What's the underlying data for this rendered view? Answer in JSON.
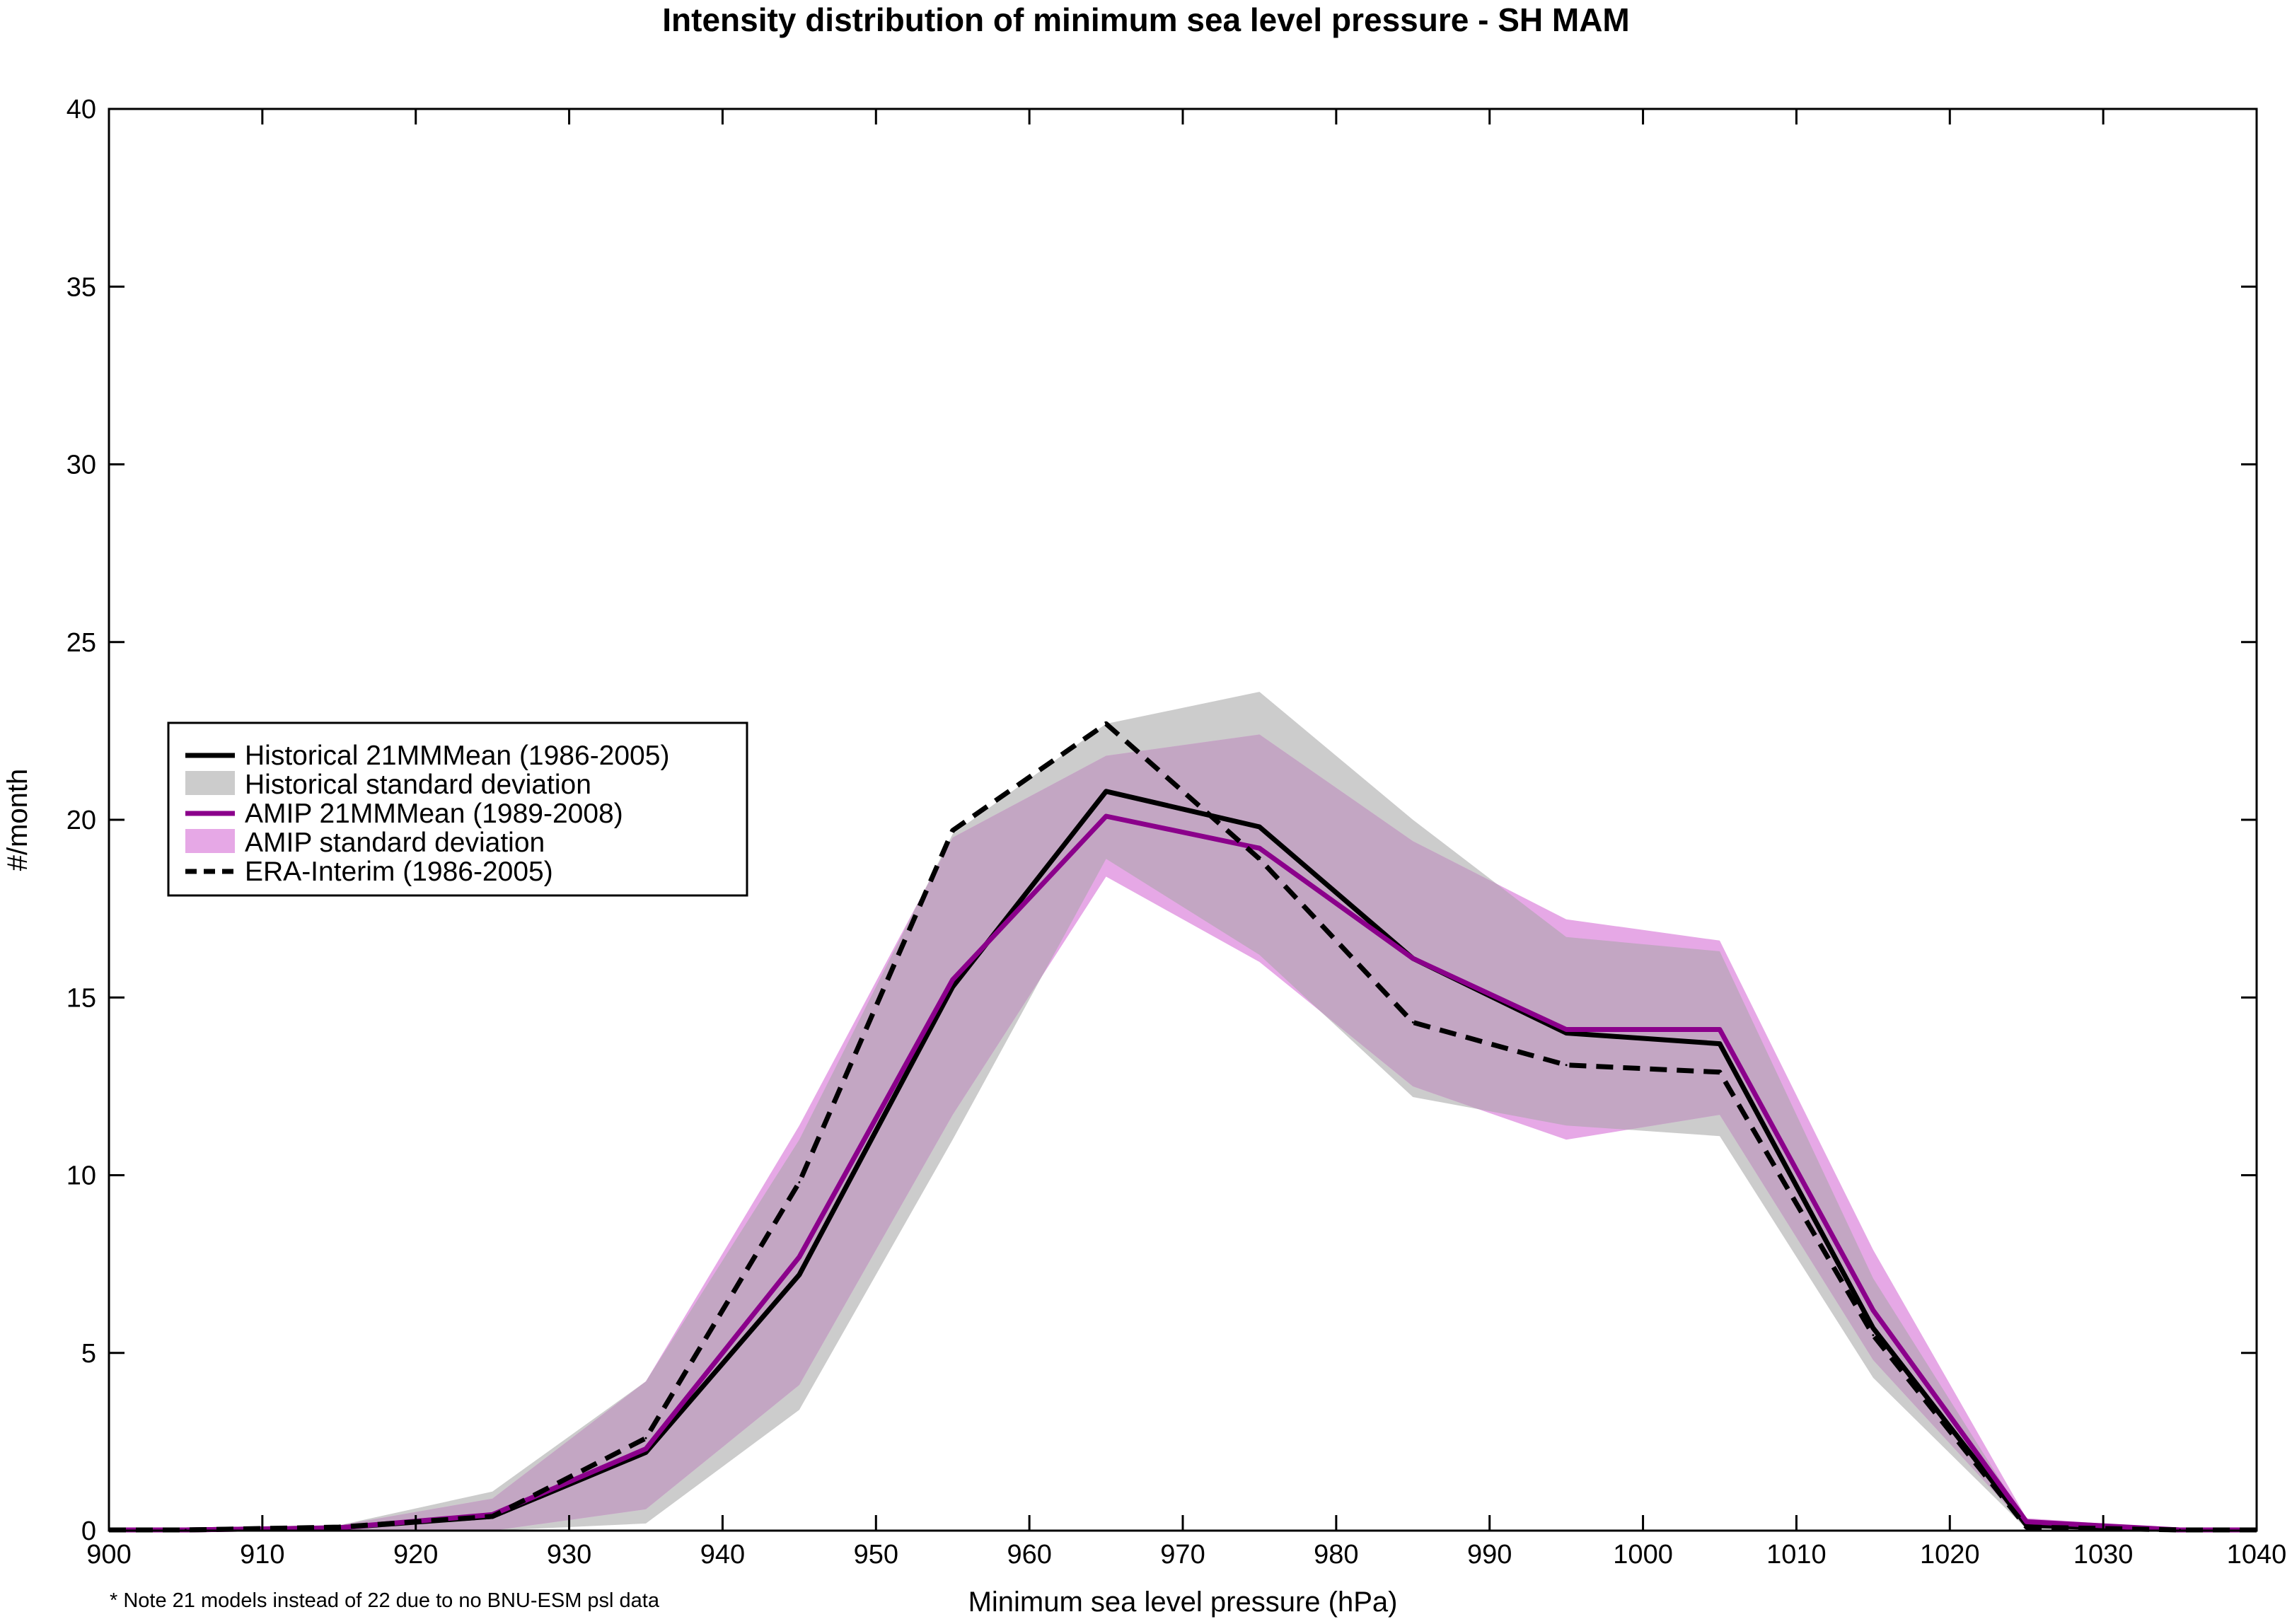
{
  "chart_data": {
    "type": "line",
    "title": "Intensity distribution of minimum sea level pressure - SH MAM",
    "xlabel": "Minimum sea level pressure (hPa)",
    "ylabel": "#/month",
    "xlim": [
      900,
      1040
    ],
    "ylim": [
      0,
      40
    ],
    "xticks": [
      900,
      910,
      920,
      930,
      940,
      950,
      960,
      970,
      980,
      990,
      1000,
      1010,
      1020,
      1030,
      1040
    ],
    "yticks": [
      0,
      5,
      10,
      15,
      20,
      25,
      30,
      35,
      40
    ],
    "grid": false,
    "legend_position": "center-left",
    "x": [
      905,
      915,
      925,
      935,
      945,
      955,
      965,
      975,
      985,
      995,
      1005,
      1015,
      1025,
      1035
    ],
    "x_extended": [
      900,
      905,
      915,
      925,
      935,
      945,
      955,
      965,
      975,
      985,
      995,
      1005,
      1015,
      1025,
      1035,
      1040
    ],
    "series": [
      {
        "name": "Historical 21MMMean (1986-2005)",
        "kind": "line",
        "color": "#000000",
        "dash": "solid",
        "values": [
          0.02,
          0.08,
          0.4,
          2.2,
          7.2,
          15.3,
          20.8,
          19.8,
          16.1,
          14.0,
          13.7,
          5.7,
          0.15,
          0.02
        ]
      },
      {
        "name": "Historical standard deviation",
        "kind": "band",
        "color": "#cccccc",
        "lower": [
          0.0,
          0.0,
          0.0,
          0.2,
          3.4,
          11.0,
          18.9,
          16.2,
          12.2,
          11.4,
          11.1,
          4.3,
          0.05,
          0.0
        ],
        "upper": [
          0.05,
          0.15,
          1.1,
          4.2,
          11.0,
          19.6,
          22.7,
          23.6,
          20.0,
          16.7,
          16.3,
          7.1,
          0.25,
          0.05
        ]
      },
      {
        "name": "AMIP 21MMMean (1989-2008)",
        "kind": "line",
        "color": "#8b008b",
        "dash": "solid",
        "values": [
          0.02,
          0.08,
          0.45,
          2.3,
          7.7,
          15.5,
          20.1,
          19.2,
          16.1,
          14.1,
          14.1,
          6.2,
          0.25,
          0.02
        ]
      },
      {
        "name": "AMIP standard deviation",
        "kind": "band",
        "color": "#e6a8e6",
        "lower": [
          0.0,
          0.0,
          0.0,
          0.6,
          4.1,
          11.7,
          18.4,
          16.0,
          12.5,
          11.0,
          11.7,
          4.8,
          0.1,
          0.0
        ],
        "upper": [
          0.05,
          0.15,
          0.9,
          4.2,
          11.4,
          19.5,
          21.8,
          22.4,
          19.4,
          17.2,
          16.6,
          7.9,
          0.35,
          0.05
        ]
      },
      {
        "name": "ERA-Interim (1986-2005)",
        "kind": "line",
        "color": "#000000",
        "dash": "dashed",
        "values": [
          0.02,
          0.1,
          0.4,
          2.6,
          9.8,
          19.7,
          22.7,
          18.9,
          14.3,
          13.1,
          12.9,
          5.5,
          0.1,
          0.02
        ]
      }
    ],
    "footnote": "* Note 21 models instead of 22 due to no BNU-ESM psl data",
    "overlap_color": "#c3a6c3"
  }
}
